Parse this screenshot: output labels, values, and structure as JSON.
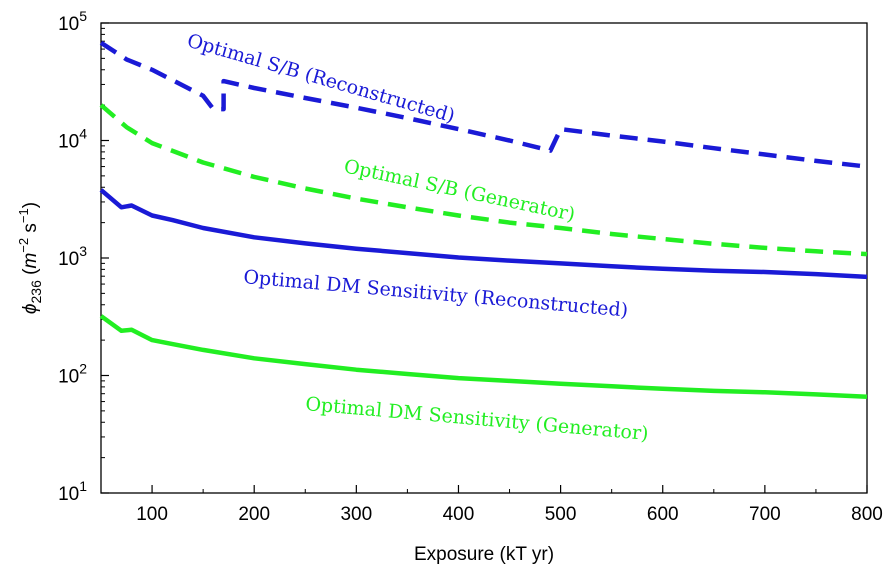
{
  "chart_data": {
    "type": "line",
    "xlabel": "Exposure (kT yr)",
    "ylabel": {
      "symbol": "ϕ",
      "subscript": "236",
      "open": " (",
      "unit1": "m",
      "exp1": "−2",
      "unit2": " s",
      "exp2": "−1",
      "close": ")"
    },
    "xlim": [
      50,
      800
    ],
    "ylim": [
      10,
      100000
    ],
    "yscale": "log",
    "grid": false,
    "xticks": [
      {
        "value": 100,
        "label": "100"
      },
      {
        "value": 200,
        "label": "200"
      },
      {
        "value": 300,
        "label": "300"
      },
      {
        "value": 400,
        "label": "400"
      },
      {
        "value": 500,
        "label": "500"
      },
      {
        "value": 600,
        "label": "600"
      },
      {
        "value": 700,
        "label": "700"
      },
      {
        "value": 800,
        "label": "800"
      }
    ],
    "yticks": [
      {
        "value": 10,
        "base": "10",
        "exp": "1"
      },
      {
        "value": 100,
        "base": "10",
        "exp": "2"
      },
      {
        "value": 1000,
        "base": "10",
        "exp": "3"
      },
      {
        "value": 10000,
        "base": "10",
        "exp": "4"
      },
      {
        "value": 100000,
        "base": "10",
        "exp": "5"
      }
    ],
    "series": [
      {
        "name": "Optimal S/B (Reconstructed)",
        "color": "#1a1ad6",
        "dash": "dashed",
        "points": [
          [
            50,
            68000
          ],
          [
            75,
            49000
          ],
          [
            100,
            40000
          ],
          [
            125,
            31000
          ],
          [
            150,
            24000
          ],
          [
            160,
            18500
          ],
          [
            170,
            18500
          ],
          [
            170,
            32000
          ],
          [
            200,
            28000
          ],
          [
            250,
            23000
          ],
          [
            300,
            19000
          ],
          [
            350,
            15500
          ],
          [
            400,
            12500
          ],
          [
            450,
            10000
          ],
          [
            490,
            8200
          ],
          [
            500,
            12500
          ],
          [
            550,
            11000
          ],
          [
            600,
            9800
          ],
          [
            650,
            8600
          ],
          [
            700,
            7600
          ],
          [
            750,
            6700
          ],
          [
            800,
            6000
          ]
        ]
      },
      {
        "name": "Optimal S/B (Generator)",
        "color": "#22ee22",
        "dash": "dashed",
        "points": [
          [
            50,
            20000
          ],
          [
            75,
            13000
          ],
          [
            100,
            9500
          ],
          [
            150,
            6500
          ],
          [
            200,
            4900
          ],
          [
            250,
            3900
          ],
          [
            300,
            3200
          ],
          [
            350,
            2700
          ],
          [
            400,
            2300
          ],
          [
            450,
            2000
          ],
          [
            500,
            1800
          ],
          [
            550,
            1600
          ],
          [
            600,
            1450
          ],
          [
            650,
            1320
          ],
          [
            700,
            1220
          ],
          [
            750,
            1140
          ],
          [
            800,
            1080
          ]
        ]
      },
      {
        "name": "Optimal DM Sensitivity (Reconstructed)",
        "color": "#1a1ad6",
        "dash": "solid",
        "points": [
          [
            50,
            3800
          ],
          [
            70,
            2700
          ],
          [
            80,
            2800
          ],
          [
            100,
            2300
          ],
          [
            120,
            2100
          ],
          [
            150,
            1800
          ],
          [
            200,
            1500
          ],
          [
            250,
            1330
          ],
          [
            300,
            1200
          ],
          [
            350,
            1100
          ],
          [
            400,
            1010
          ],
          [
            450,
            950
          ],
          [
            500,
            900
          ],
          [
            550,
            850
          ],
          [
            600,
            810
          ],
          [
            650,
            780
          ],
          [
            700,
            760
          ],
          [
            750,
            730
          ],
          [
            800,
            690
          ]
        ]
      },
      {
        "name": "Optimal DM Sensitivity (Generator)",
        "color": "#22ee22",
        "dash": "solid",
        "points": [
          [
            50,
            320
          ],
          [
            70,
            240
          ],
          [
            80,
            245
          ],
          [
            100,
            200
          ],
          [
            120,
            185
          ],
          [
            150,
            165
          ],
          [
            200,
            140
          ],
          [
            250,
            125
          ],
          [
            300,
            112
          ],
          [
            350,
            103
          ],
          [
            400,
            95
          ],
          [
            450,
            90
          ],
          [
            500,
            85
          ],
          [
            550,
            81
          ],
          [
            600,
            77
          ],
          [
            650,
            74
          ],
          [
            700,
            72
          ],
          [
            750,
            69
          ],
          [
            800,
            66
          ]
        ]
      }
    ],
    "annotations": [
      {
        "text": "Optimal S/B (Reconstructed)",
        "color": "#1a1ad6",
        "anchor": [
          186,
          46
        ],
        "rotate": 16
      },
      {
        "text": "Optimal S/B (Generator)",
        "color": "#22ee22",
        "anchor": [
          343,
          172
        ],
        "rotate": 12
      },
      {
        "text": "Optimal DM Sensitivity (Reconstructed)",
        "color": "#1a1ad6",
        "anchor": [
          243,
          283
        ],
        "rotate": 5
      },
      {
        "text": "Optimal DM Sensitivity (Generator)",
        "color": "#22ee22",
        "anchor": [
          305,
          410
        ],
        "rotate": 5
      }
    ]
  }
}
